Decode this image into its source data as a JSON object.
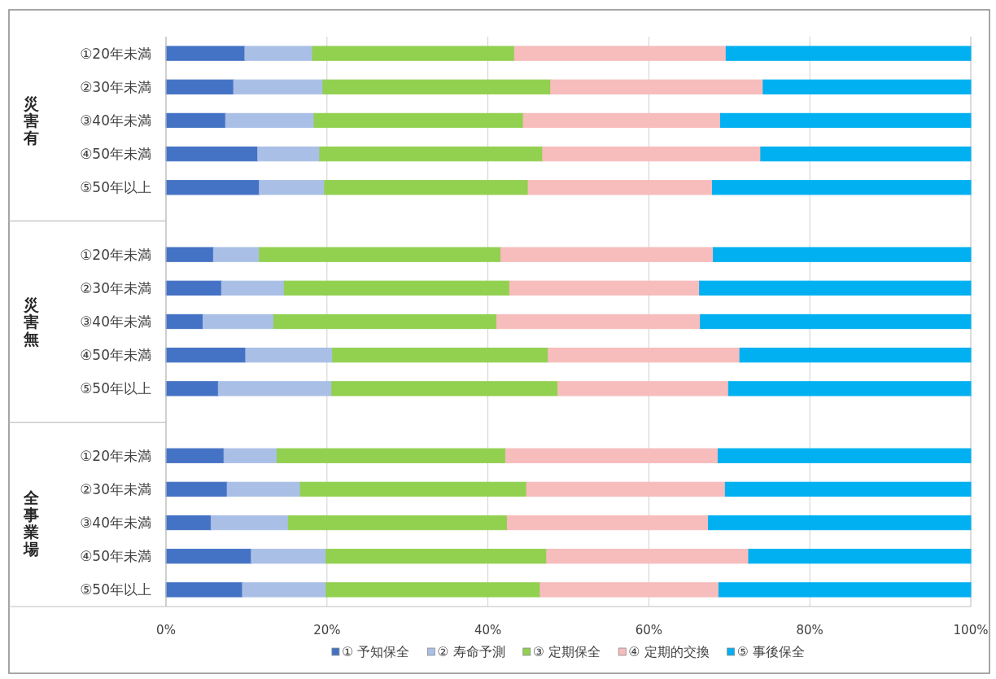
{
  "chart_data": {
    "type": "bar",
    "orientation": "horizontal",
    "stacked": true,
    "categories": [
      "①20年未満",
      "②30年未満",
      "③40年未満",
      "④50年未満",
      "⑤50年以上",
      null,
      "①20年未満",
      "②30年未満",
      "③40年未満",
      "④50年未満",
      "⑤50年以上",
      null,
      "①20年未満",
      "②30年未満",
      "③40年未満",
      "④50年未満",
      "⑤50年以上"
    ],
    "series": [
      {
        "name": "① 予知保全",
        "color": "#4472c4",
        "values": [
          9.8,
          8.4,
          7.4,
          11.4,
          11.6,
          null,
          5.9,
          6.9,
          4.6,
          9.9,
          6.5,
          null,
          7.2,
          7.6,
          5.6,
          10.6,
          9.5
        ]
      },
      {
        "name": "② 寿命予測",
        "color": "#a9bfe6",
        "values": [
          8.4,
          11.1,
          11.0,
          7.7,
          8.1,
          null,
          5.7,
          7.8,
          8.8,
          10.8,
          14.1,
          null,
          6.6,
          9.1,
          9.6,
          9.3,
          10.4
        ]
      },
      {
        "name": "③ 定期保全",
        "color": "#92d050",
        "values": [
          25.1,
          28.3,
          26.0,
          27.7,
          25.3,
          null,
          30.0,
          28.0,
          27.7,
          26.8,
          28.1,
          null,
          28.4,
          28.1,
          27.2,
          27.4,
          26.6
        ]
      },
      {
        "name": "④ 定期的交換",
        "color": "#f7bcbc",
        "values": [
          26.3,
          26.4,
          24.5,
          27.1,
          22.9,
          null,
          26.4,
          23.6,
          25.3,
          23.8,
          21.2,
          null,
          26.4,
          24.7,
          25.0,
          25.1,
          22.2
        ]
      },
      {
        "name": "⑤ 事後保全",
        "color": "#00b0f0",
        "values": [
          30.4,
          25.8,
          31.1,
          26.1,
          32.1,
          null,
          32.0,
          33.7,
          33.6,
          28.7,
          30.1,
          null,
          31.4,
          30.5,
          32.6,
          27.6,
          31.3
        ]
      }
    ],
    "annotations": [
      "災害有",
      "災害無",
      "全事業場"
    ],
    "xlim": [
      0,
      100
    ],
    "xticks": [
      {
        "value": 0,
        "label": "0%"
      },
      {
        "value": 20,
        "label": "20%"
      },
      {
        "value": 40,
        "label": "40%"
      },
      {
        "value": 60,
        "label": "60%"
      },
      {
        "value": 80,
        "label": "80%"
      },
      {
        "value": 100,
        "label": "100%"
      }
    ],
    "grid": "x",
    "legend": "bottom"
  }
}
